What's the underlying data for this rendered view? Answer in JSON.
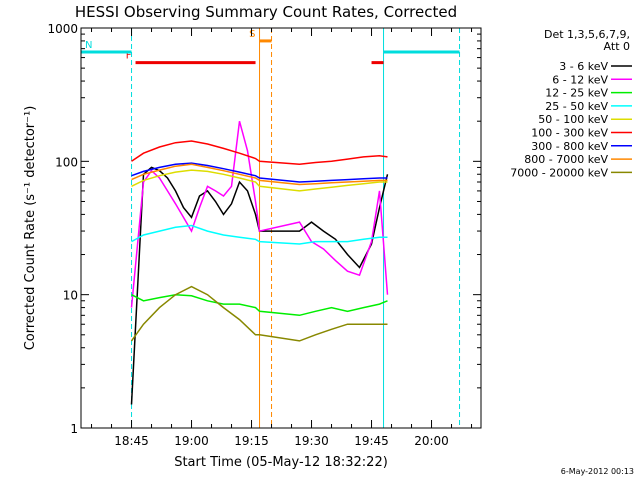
{
  "chart_data": {
    "type": "line",
    "title": "HESSI Observing Summary Count Rates, Corrected",
    "xlabel": "Start Time (05-May-12 18:32:22)",
    "ylabel": "Corrected Count Rate (s⁻¹ detector⁻¹)",
    "yscale": "log",
    "ylim": [
      1,
      1000
    ],
    "xlim": [
      "18:32:22",
      "20:12:22"
    ],
    "x_ticks": [
      "18:45",
      "19:00",
      "19:15",
      "19:30",
      "19:45",
      "20:00"
    ],
    "y_ticks": [
      "1",
      "10",
      "100",
      "1000"
    ],
    "legend_title": "Det 1,3,5,6,7,9, Att 0",
    "legend_title_lines": [
      "Det 1,3,5,6,7,9,",
      "Att 0"
    ],
    "legend_position": "right",
    "footer_date": "6-May-2012 00:13",
    "series": [
      {
        "name": "3 - 6 keV",
        "color": "#000000",
        "x": [
          "18:45",
          "18:48",
          "18:50",
          "18:52",
          "18:54",
          "18:56",
          "18:58",
          "19:00",
          "19:02",
          "19:04",
          "19:06",
          "19:08",
          "19:10",
          "19:12",
          "19:14",
          "19:16",
          "19:17",
          "19:27",
          "19:30",
          "19:33",
          "19:36",
          "19:39",
          "19:42",
          "19:45",
          "19:47",
          "19:49"
        ],
        "y": [
          1.5,
          80,
          90,
          85,
          75,
          60,
          45,
          38,
          55,
          60,
          50,
          40,
          48,
          70,
          60,
          40,
          30,
          30,
          35,
          30,
          26,
          20,
          16,
          24,
          45,
          80
        ]
      },
      {
        "name": "6 - 12 keV",
        "color": "#ff00ff",
        "x": [
          "18:45",
          "18:48",
          "18:50",
          "18:52",
          "18:54",
          "18:56",
          "18:58",
          "19:00",
          "19:02",
          "19:04",
          "19:06",
          "19:08",
          "19:10",
          "19:12",
          "19:14",
          "19:16",
          "19:17",
          "19:27",
          "19:30",
          "19:33",
          "19:36",
          "19:39",
          "19:42",
          "19:45",
          "19:47",
          "19:49"
        ],
        "y": [
          8,
          70,
          85,
          75,
          60,
          48,
          38,
          30,
          45,
          65,
          60,
          55,
          65,
          200,
          120,
          50,
          30,
          35,
          25,
          22,
          18,
          15,
          14,
          25,
          60,
          10
        ]
      },
      {
        "name": "12 - 25 keV",
        "color": "#00ee00",
        "x": [
          "18:45",
          "18:48",
          "18:52",
          "18:56",
          "19:00",
          "19:04",
          "19:08",
          "19:12",
          "19:16",
          "19:17",
          "19:27",
          "19:31",
          "19:35",
          "19:39",
          "19:43",
          "19:47",
          "19:49"
        ],
        "y": [
          10,
          9,
          9.5,
          10,
          9.8,
          9,
          8.5,
          8.5,
          8,
          7.5,
          7,
          7.5,
          8,
          7.5,
          8,
          8.5,
          9
        ]
      },
      {
        "name": "25 - 50 keV",
        "color": "#00ffff",
        "x": [
          "18:45",
          "18:48",
          "18:52",
          "18:56",
          "19:00",
          "19:04",
          "19:08",
          "19:12",
          "19:16",
          "19:17",
          "19:27",
          "19:31",
          "19:35",
          "19:39",
          "19:43",
          "19:47",
          "19:49"
        ],
        "y": [
          25,
          28,
          30,
          32,
          33,
          30,
          28,
          27,
          26,
          25,
          24,
          25,
          25,
          25,
          26,
          27,
          27
        ]
      },
      {
        "name": "50 - 100 keV",
        "color": "#dddd00",
        "x": [
          "18:45",
          "18:48",
          "18:52",
          "18:56",
          "19:00",
          "19:04",
          "19:08",
          "19:12",
          "19:16",
          "19:17",
          "19:27",
          "19:31",
          "19:35",
          "19:39",
          "19:43",
          "19:47",
          "19:49"
        ],
        "y": [
          65,
          72,
          78,
          83,
          86,
          84,
          80,
          75,
          70,
          65,
          60,
          62,
          64,
          66,
          68,
          70,
          70
        ]
      },
      {
        "name": "100 - 300 keV",
        "color": "#ff0000",
        "x": [
          "18:45",
          "18:48",
          "18:52",
          "18:56",
          "19:00",
          "19:04",
          "19:08",
          "19:12",
          "19:16",
          "19:17",
          "19:27",
          "19:31",
          "19:35",
          "19:39",
          "19:43",
          "19:47",
          "19:49"
        ],
        "y": [
          100,
          115,
          128,
          138,
          142,
          135,
          125,
          115,
          105,
          100,
          95,
          98,
          100,
          104,
          108,
          110,
          108
        ]
      },
      {
        "name": "300 - 800 keV",
        "color": "#0000ff",
        "x": [
          "18:45",
          "18:48",
          "18:52",
          "18:56",
          "19:00",
          "19:04",
          "19:08",
          "19:12",
          "19:16",
          "19:17",
          "19:27",
          "19:31",
          "19:35",
          "19:39",
          "19:43",
          "19:47",
          "19:49"
        ],
        "y": [
          78,
          84,
          90,
          95,
          97,
          93,
          88,
          83,
          78,
          75,
          70,
          71,
          72,
          73,
          74,
          75,
          75
        ]
      },
      {
        "name": "800 - 7000 keV",
        "color": "#ff8800",
        "x": [
          "18:45",
          "18:48",
          "18:52",
          "18:56",
          "19:00",
          "19:04",
          "19:08",
          "19:12",
          "19:16",
          "19:17",
          "19:27",
          "19:31",
          "19:35",
          "19:39",
          "19:43",
          "19:47",
          "19:49"
        ],
        "y": [
          73,
          80,
          86,
          92,
          95,
          90,
          85,
          80,
          75,
          72,
          67,
          68,
          69,
          70,
          71,
          72,
          72
        ]
      },
      {
        "name": "7000 - 20000 keV",
        "color": "#888800",
        "x": [
          "18:45",
          "18:48",
          "18:52",
          "18:56",
          "19:00",
          "19:04",
          "19:08",
          "19:12",
          "19:16",
          "19:17",
          "19:27",
          "19:31",
          "19:35",
          "19:39",
          "19:43",
          "19:47",
          "19:49"
        ],
        "y": [
          4.5,
          6,
          8,
          10,
          11.5,
          10,
          8,
          6.5,
          5,
          5,
          4.5,
          5,
          5.5,
          6,
          6,
          6,
          6
        ]
      }
    ],
    "flags": [
      {
        "label": "F",
        "color": "#ee0000",
        "value": 550,
        "segments": [
          [
            "18:46",
            "19:16"
          ],
          [
            "19:45",
            "19:48"
          ]
        ]
      },
      {
        "label": "N",
        "color": "#00dddd",
        "value": 660,
        "segments": [
          [
            "18:32:22",
            "18:45"
          ],
          [
            "19:48",
            "20:07"
          ]
        ]
      },
      {
        "label": "S",
        "color": "#ff8800",
        "value": 800,
        "segments": [
          [
            "19:17",
            "19:20"
          ]
        ]
      }
    ],
    "vlines": [
      {
        "time": "18:45",
        "color": "#00dddd",
        "style": "dashed"
      },
      {
        "time": "19:48",
        "color": "#00dddd",
        "style": "solid"
      },
      {
        "time": "20:07",
        "color": "#00dddd",
        "style": "dashed"
      },
      {
        "time": "19:17",
        "color": "#ff8800",
        "style": "solid"
      },
      {
        "time": "19:20",
        "color": "#ff8800",
        "style": "dashed"
      }
    ]
  }
}
